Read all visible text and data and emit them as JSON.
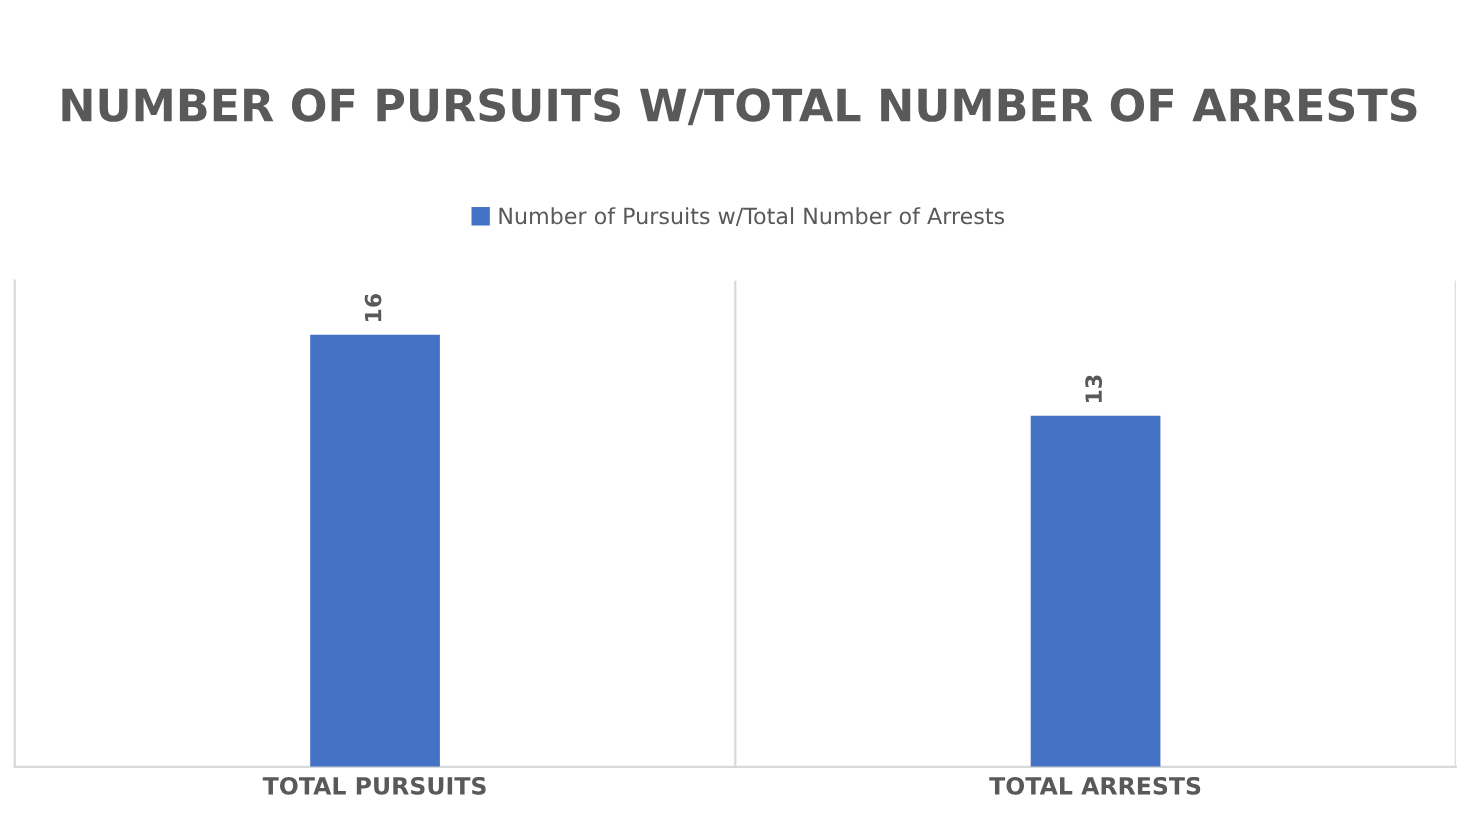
{
  "chart_data": {
    "type": "bar",
    "title": "NUMBER OF PURSUITS W/TOTAL NUMBER OF ARRESTS",
    "categories": [
      "TOTAL PURSUITS",
      "TOTAL ARRESTS"
    ],
    "series": [
      {
        "name": "Number of Pursuits w/Total Number of Arrests",
        "color": "#4472c4",
        "values": [
          16,
          13
        ]
      }
    ],
    "ylim": [
      0,
      18
    ],
    "data_labels": true,
    "grid": "x",
    "legend": "top",
    "tick_labels": "x"
  }
}
